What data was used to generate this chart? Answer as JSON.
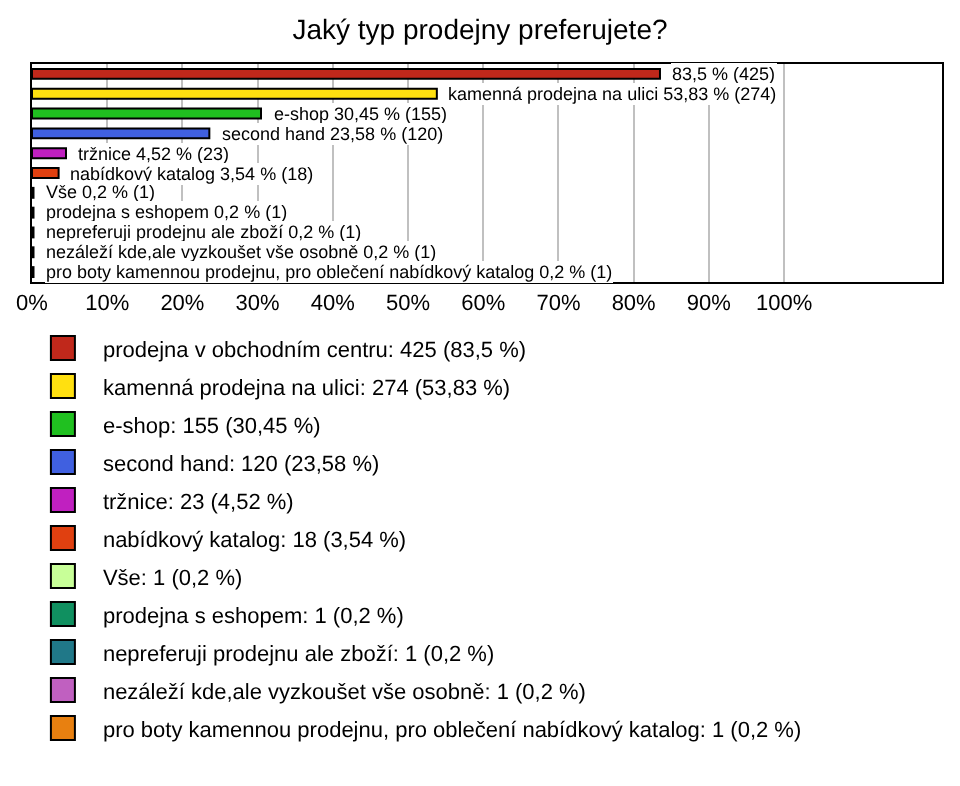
{
  "chart_data": {
    "type": "bar",
    "orientation": "horizontal",
    "title": "Jaký typ prodejny preferujete?",
    "categories": [
      null,
      null,
      null,
      null,
      null,
      null,
      null,
      null,
      null,
      null,
      null
    ],
    "xlim": [
      0,
      121
    ],
    "xticks": [
      {
        "value": 0,
        "label": "0%"
      },
      {
        "value": 10,
        "label": "10%"
      },
      {
        "value": 20,
        "label": "20%"
      },
      {
        "value": 30,
        "label": "30%"
      },
      {
        "value": 40,
        "label": "40%"
      },
      {
        "value": 50,
        "label": "50%"
      },
      {
        "value": 60,
        "label": "60%"
      },
      {
        "value": 70,
        "label": "70%"
      },
      {
        "value": 80,
        "label": "80%"
      },
      {
        "value": 90,
        "label": "90%"
      },
      {
        "value": 100,
        "label": "100%"
      }
    ],
    "grid": "x",
    "legend": "bottom",
    "tick_labels": "x",
    "series": [
      {
        "name": "prodejna v obchodním centru: 425 (83,5 %)",
        "color": "#c0281b",
        "values": [
          83.5,
          null,
          null,
          null,
          null,
          null,
          null,
          null,
          null,
          null,
          null
        ],
        "value_labels": [
          "83,5 % (425)",
          null,
          null,
          null,
          null,
          null,
          null,
          null,
          null,
          null,
          null
        ]
      },
      {
        "name": "kamenná prodejna na ulici: 274 (53,83 %)",
        "color": "#ffe010",
        "values": [
          null,
          53.83,
          null,
          null,
          null,
          null,
          null,
          null,
          null,
          null,
          null
        ],
        "value_labels": [
          null,
          "kamenná prodejna na ulici 53,83 % (274)",
          null,
          null,
          null,
          null,
          null,
          null,
          null,
          null,
          null
        ]
      },
      {
        "name": "e-shop: 155 (30,45 %)",
        "color": "#20c020",
        "values": [
          null,
          null,
          30.45,
          null,
          null,
          null,
          null,
          null,
          null,
          null,
          null
        ],
        "value_labels": [
          null,
          null,
          "e-shop 30,45 % (155)",
          null,
          null,
          null,
          null,
          null,
          null,
          null,
          null
        ]
      },
      {
        "name": "second hand: 120 (23,58 %)",
        "color": "#4060e0",
        "values": [
          null,
          null,
          null,
          23.58,
          null,
          null,
          null,
          null,
          null,
          null,
          null
        ],
        "value_labels": [
          null,
          null,
          null,
          "second hand 23,58 % (120)",
          null,
          null,
          null,
          null,
          null,
          null,
          null
        ]
      },
      {
        "name": "tržnice: 23 (4,52 %)",
        "color": "#c020c0",
        "values": [
          null,
          null,
          null,
          null,
          4.52,
          null,
          null,
          null,
          null,
          null,
          null
        ],
        "value_labels": [
          null,
          null,
          null,
          null,
          "tržnice 4,52 % (23)",
          null,
          null,
          null,
          null,
          null,
          null
        ]
      },
      {
        "name": "nabídkový katalog: 18 (3,54 %)",
        "color": "#e04010",
        "values": [
          null,
          null,
          null,
          null,
          null,
          3.54,
          null,
          null,
          null,
          null,
          null
        ],
        "value_labels": [
          null,
          null,
          null,
          null,
          null,
          "nabídkový katalog 3,54 % (18)",
          null,
          null,
          null,
          null,
          null
        ]
      },
      {
        "name": "Vše: 1 (0,2 %)",
        "color": "#c8ff98",
        "values": [
          null,
          null,
          null,
          null,
          null,
          null,
          0.2,
          null,
          null,
          null,
          null
        ],
        "value_labels": [
          null,
          null,
          null,
          null,
          null,
          null,
          "Vše 0,2 % (1)",
          null,
          null,
          null,
          null
        ]
      },
      {
        "name": "prodejna s eshopem: 1 (0,2 %)",
        "color": "#109060",
        "values": [
          null,
          null,
          null,
          null,
          null,
          null,
          null,
          0.2,
          null,
          null,
          null
        ],
        "value_labels": [
          null,
          null,
          null,
          null,
          null,
          null,
          null,
          "prodejna s eshopem 0,2 % (1)",
          null,
          null,
          null
        ]
      },
      {
        "name": "nepreferuji prodejnu ale zboží: 1 (0,2 %)",
        "color": "#207888",
        "values": [
          null,
          null,
          null,
          null,
          null,
          null,
          null,
          null,
          0.2,
          null,
          null
        ],
        "value_labels": [
          null,
          null,
          null,
          null,
          null,
          null,
          null,
          null,
          "nepreferuji prodejnu ale zboží 0,2 % (1)",
          null,
          null
        ]
      },
      {
        "name": "nezáleží kde,ale vyzkoušet vše osobně: 1 (0,2 %)",
        "color": "#c060c0",
        "values": [
          null,
          null,
          null,
          null,
          null,
          null,
          null,
          null,
          null,
          0.2,
          null
        ],
        "value_labels": [
          null,
          null,
          null,
          null,
          null,
          null,
          null,
          null,
          null,
          "nezáleží kde,ale vyzkoušet vše osobně 0,2 % (1)",
          null
        ]
      },
      {
        "name": "pro boty kamennou prodejnu, pro oblečení nabídkový katalog: 1 (0,2 %)",
        "color": "#e88010",
        "values": [
          null,
          null,
          null,
          null,
          null,
          null,
          null,
          null,
          null,
          null,
          0.2
        ],
        "value_labels": [
          null,
          null,
          null,
          null,
          null,
          null,
          null,
          null,
          null,
          null,
          "pro boty kamennou prodejnu, pro oblečení nabídkový katalog 0,2 % (1)"
        ]
      }
    ]
  }
}
